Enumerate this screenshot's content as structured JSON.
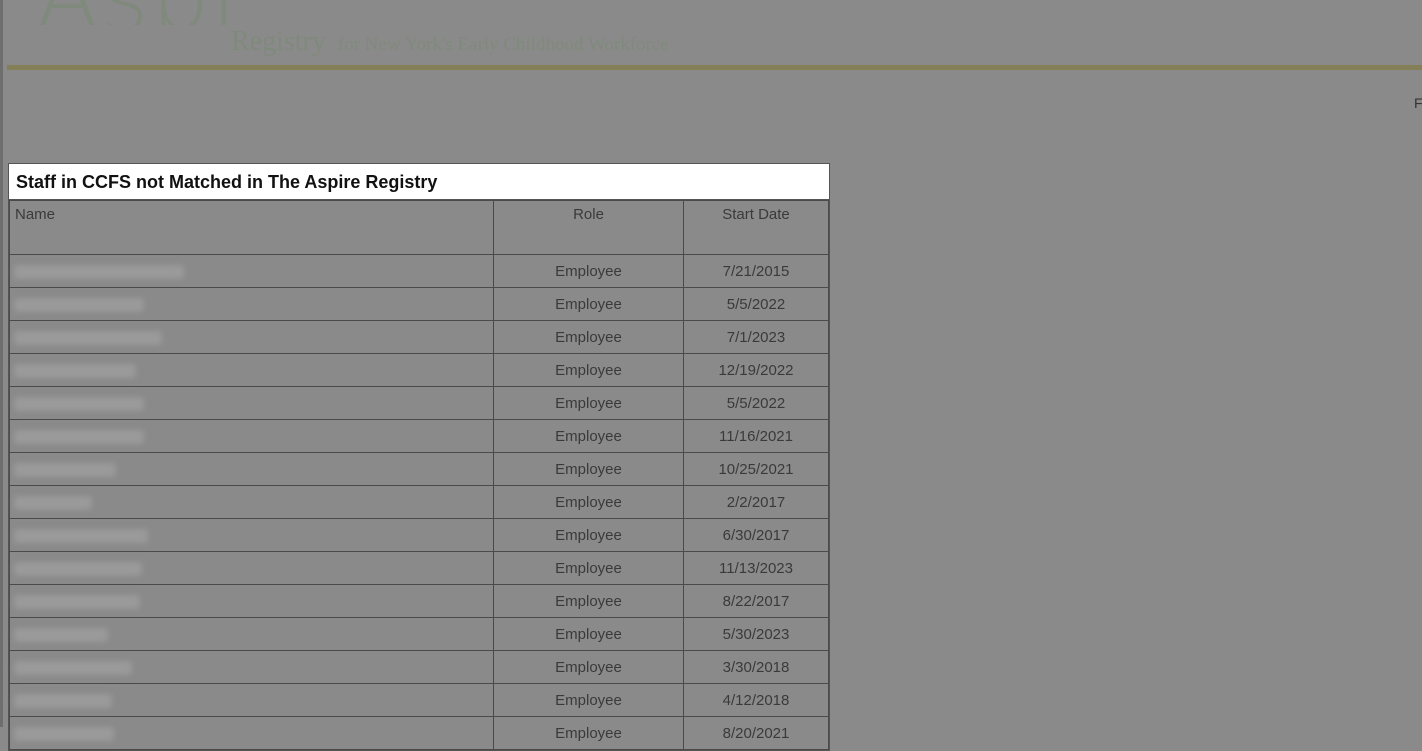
{
  "header": {
    "logo_word": "Aspire",
    "logo_sub": "Registry",
    "tagline": "for New York's Early Childhood Workforce",
    "edge_text": "F",
    "accent_color": "#857f58"
  },
  "panel": {
    "title": "Staff in CCFS not Matched in The Aspire Registry",
    "columns": [
      "Name",
      "Role",
      "Start Date"
    ],
    "rows": [
      {
        "role": "Employee",
        "start": "7/21/2015"
      },
      {
        "role": "Employee",
        "start": "5/5/2022"
      },
      {
        "role": "Employee",
        "start": "7/1/2023"
      },
      {
        "role": "Employee",
        "start": "12/19/2022"
      },
      {
        "role": "Employee",
        "start": "5/5/2022"
      },
      {
        "role": "Employee",
        "start": "11/16/2021"
      },
      {
        "role": "Employee",
        "start": "10/25/2021"
      },
      {
        "role": "Employee",
        "start": "2/2/2017"
      },
      {
        "role": "Employee",
        "start": "6/30/2017"
      },
      {
        "role": "Employee",
        "start": "11/13/2023"
      },
      {
        "role": "Employee",
        "start": "8/22/2017"
      },
      {
        "role": "Employee",
        "start": "5/30/2023"
      },
      {
        "role": "Employee",
        "start": "3/30/2018"
      },
      {
        "role": "Employee",
        "start": "4/12/2018"
      },
      {
        "role": "Employee",
        "start": "8/20/2021"
      }
    ]
  }
}
